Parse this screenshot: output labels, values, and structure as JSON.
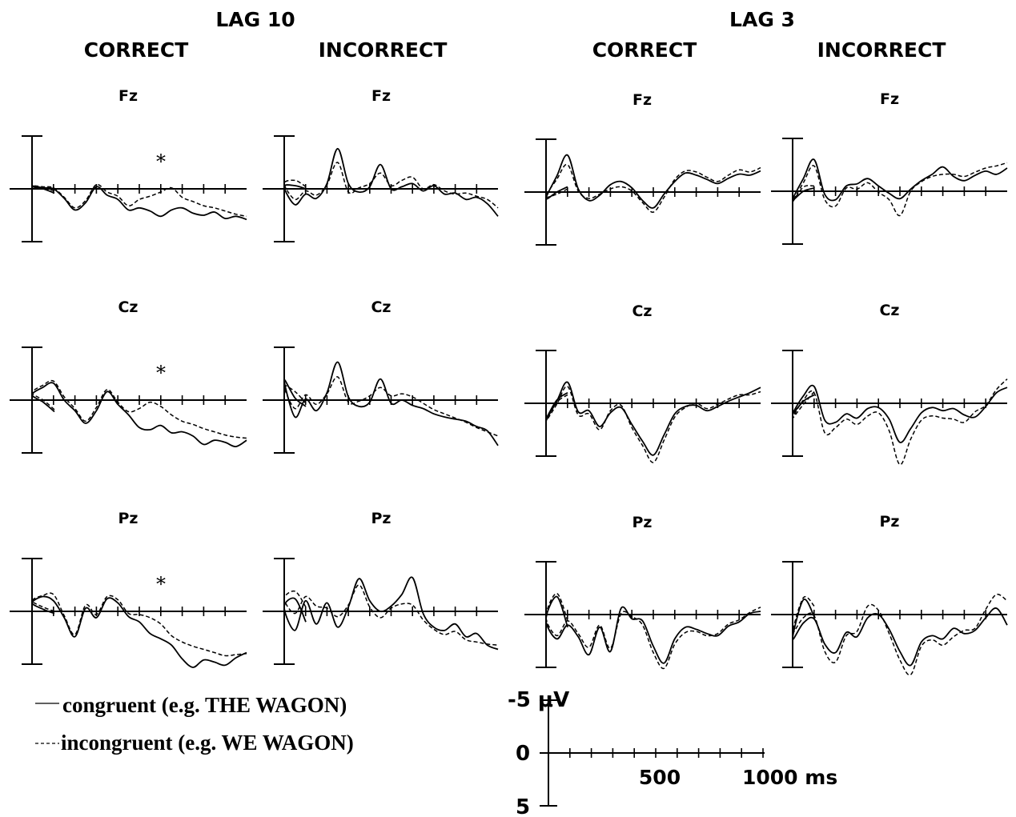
{
  "chart_data": {
    "type": "line",
    "figure_kind": "ERP waveforms",
    "groups": [
      {
        "key": "lag10",
        "label": "LAG 10"
      },
      {
        "key": "lag3",
        "label": "LAG 3"
      }
    ],
    "conditions": [
      "CORRECT",
      "INCORRECT",
      "CORRECT",
      "INCORRECT"
    ],
    "electrodes": [
      "Fz",
      "Cz",
      "Pz"
    ],
    "significance_marker": "*",
    "series_legend": [
      {
        "key": "congruent",
        "label": "congruent (e.g. THE WAGON)",
        "line_style": "solid"
      },
      {
        "key": "incongruent",
        "label": "incongruent (e.g. WE WAGON)",
        "line_style": "dashed"
      }
    ],
    "axis": {
      "x_unit": "ms",
      "x_range": [
        -100,
        1000
      ],
      "x_tick_interval": 100,
      "x_tick_labels": [
        "500",
        "1000 ms"
      ],
      "y_unit": "μV",
      "y_range": [
        -5,
        5
      ],
      "y_inverted": true,
      "y_tick_labels": [
        "-5 μV",
        "0",
        "5"
      ]
    },
    "panels": [
      {
        "group": "lag10",
        "condition": "CORRECT",
        "electrode": "Fz",
        "marker": "*",
        "x": [
          -100,
          -50,
          0,
          50,
          100,
          150,
          200,
          250,
          300,
          350,
          400,
          450,
          500,
          550,
          600,
          650,
          700,
          750,
          800,
          850,
          900,
          950,
          1000
        ],
        "congruent": [
          -0.4,
          0.0,
          0.2,
          0.1,
          0.0,
          -0.9,
          -2.0,
          -1.3,
          0.2,
          -0.6,
          -1.0,
          -2.0,
          -1.8,
          -2.1,
          -2.6,
          -2.0,
          -1.8,
          -2.3,
          -2.5,
          -2.2,
          -2.8,
          -2.6,
          -2.9
        ],
        "incongruent": [
          -0.2,
          0.1,
          0.3,
          0.2,
          0.1,
          -0.8,
          -1.8,
          -1.1,
          0.4,
          -0.3,
          -0.7,
          -1.6,
          -1.0,
          -0.7,
          -0.3,
          0.1,
          -0.8,
          -1.2,
          -1.6,
          -1.8,
          -2.1,
          -2.4,
          -2.6
        ]
      },
      {
        "group": "lag10",
        "condition": "INCORRECT",
        "electrode": "Fz",
        "x": [
          -100,
          -50,
          0,
          50,
          100,
          150,
          200,
          250,
          300,
          350,
          400,
          450,
          500,
          550,
          600,
          650,
          700,
          750,
          800,
          850,
          900,
          950,
          1000
        ],
        "congruent": [
          0.0,
          0.3,
          0.2,
          -1.5,
          -0.5,
          -0.9,
          0.5,
          3.8,
          0.5,
          -0.3,
          0.2,
          2.3,
          0.0,
          0.2,
          0.5,
          -0.2,
          0.3,
          -0.5,
          -0.4,
          -1.0,
          -0.8,
          -1.4,
          -2.6
        ],
        "incongruent": [
          0.2,
          0.8,
          0.5,
          -1.0,
          -0.2,
          -0.6,
          0.4,
          2.5,
          -0.3,
          0.1,
          0.5,
          1.5,
          0.3,
          0.8,
          1.1,
          0.0,
          0.4,
          -0.2,
          -0.5,
          -0.4,
          -0.7,
          -1.0,
          -1.8
        ]
      },
      {
        "group": "lag3",
        "condition": "CORRECT",
        "electrode": "Fz",
        "x": [
          -100,
          -50,
          0,
          50,
          100,
          150,
          200,
          250,
          300,
          350,
          400,
          450,
          500,
          550,
          600,
          650,
          700,
          750,
          800,
          850,
          900,
          950,
          1000
        ],
        "congruent": [
          0.5,
          0.0,
          -0.6,
          1.5,
          3.5,
          0.3,
          -0.8,
          -0.3,
          0.7,
          1.0,
          0.4,
          -0.8,
          -1.5,
          -0.2,
          1.0,
          1.8,
          1.6,
          1.2,
          0.8,
          1.3,
          1.7,
          1.6,
          2.0
        ],
        "incongruent": [
          0.3,
          -0.2,
          -0.4,
          1.2,
          2.6,
          0.1,
          -0.6,
          -0.2,
          0.3,
          0.5,
          0.1,
          -1.0,
          -1.9,
          -0.5,
          1.2,
          2.0,
          1.9,
          1.4,
          1.0,
          1.6,
          2.1,
          1.9,
          2.3
        ]
      },
      {
        "group": "lag3",
        "condition": "INCORRECT",
        "electrode": "Fz",
        "x": [
          -100,
          -50,
          0,
          50,
          100,
          150,
          200,
          250,
          300,
          350,
          400,
          450,
          500,
          550,
          600,
          650,
          700,
          750,
          800,
          850,
          900,
          950,
          1000
        ],
        "congruent": [
          0.3,
          0.0,
          -0.8,
          1.2,
          3.0,
          -0.3,
          -0.8,
          0.5,
          0.7,
          1.2,
          0.5,
          -0.2,
          -0.7,
          0.2,
          1.0,
          1.6,
          2.3,
          1.4,
          1.0,
          1.5,
          1.9,
          1.6,
          2.2
        ],
        "incongruent": [
          0.5,
          0.4,
          -1.0,
          0.8,
          2.4,
          -0.8,
          -1.4,
          0.3,
          0.2,
          0.8,
          -0.1,
          -0.8,
          -2.3,
          0.0,
          0.9,
          1.4,
          1.6,
          1.6,
          1.4,
          1.8,
          2.2,
          2.4,
          2.7
        ]
      },
      {
        "group": "lag10",
        "condition": "CORRECT",
        "electrode": "Cz",
        "marker": "*",
        "x": [
          -100,
          -50,
          0,
          50,
          100,
          150,
          200,
          250,
          300,
          350,
          400,
          450,
          500,
          550,
          600,
          650,
          700,
          750,
          800,
          850,
          900,
          950,
          1000
        ],
        "congruent": [
          -1.1,
          -0.2,
          0.5,
          1.2,
          1.6,
          0.0,
          -1.0,
          -2.2,
          -1.0,
          0.8,
          -0.4,
          -1.4,
          -2.6,
          -2.8,
          -2.4,
          -3.1,
          -3.0,
          -3.4,
          -4.2,
          -3.8,
          -4.0,
          -4.4,
          -3.8
        ],
        "incongruent": [
          -0.9,
          0.0,
          0.7,
          1.4,
          1.8,
          0.3,
          -0.8,
          -2.0,
          -0.7,
          1.0,
          -0.2,
          -1.1,
          -0.8,
          -0.2,
          -0.6,
          -1.4,
          -2.0,
          -2.3,
          -2.7,
          -3.0,
          -3.3,
          -3.5,
          -3.6
        ]
      },
      {
        "group": "lag10",
        "condition": "INCORRECT",
        "electrode": "Cz",
        "x": [
          -100,
          -50,
          0,
          50,
          100,
          150,
          200,
          250,
          300,
          350,
          400,
          450,
          500,
          550,
          600,
          650,
          700,
          750,
          800,
          850,
          900,
          950,
          1000
        ],
        "congruent": [
          -0.6,
          0.2,
          1.9,
          -1.6,
          0.1,
          -1.0,
          0.7,
          3.6,
          0.3,
          -0.6,
          -0.2,
          2.0,
          -0.3,
          0.0,
          -0.5,
          -0.8,
          -1.3,
          -1.6,
          -1.8,
          -2.0,
          -2.5,
          -2.9,
          -4.3
        ],
        "incongruent": [
          -0.3,
          0.8,
          1.3,
          -0.8,
          0.5,
          -0.4,
          0.6,
          2.2,
          -0.2,
          -0.1,
          0.4,
          1.2,
          0.4,
          0.6,
          0.3,
          -0.3,
          -0.9,
          -1.3,
          -1.7,
          -2.1,
          -2.6,
          -3.0,
          -3.4
        ]
      },
      {
        "group": "lag3",
        "condition": "CORRECT",
        "electrode": "Cz",
        "x": [
          -100,
          -50,
          0,
          50,
          100,
          150,
          200,
          250,
          300,
          350,
          400,
          450,
          500,
          550,
          600,
          650,
          700,
          750,
          800,
          850,
          900,
          950,
          1000
        ],
        "congruent": [
          1.0,
          0.3,
          -1.5,
          0.2,
          2.0,
          -0.8,
          -0.7,
          -2.2,
          -0.9,
          -0.4,
          -2.0,
          -3.6,
          -4.9,
          -3.0,
          -1.0,
          -0.3,
          -0.2,
          -0.7,
          -0.3,
          0.2,
          0.6,
          1.0,
          1.5
        ],
        "incongruent": [
          0.8,
          0.1,
          -1.7,
          -0.1,
          1.6,
          -1.1,
          -1.0,
          -2.5,
          -0.7,
          -0.2,
          -2.3,
          -4.0,
          -5.6,
          -3.5,
          -1.3,
          -0.4,
          0.0,
          -0.5,
          -0.1,
          0.4,
          0.8,
          0.8,
          1.1
        ]
      },
      {
        "group": "lag3",
        "condition": "INCORRECT",
        "electrode": "Cz",
        "x": [
          -100,
          -50,
          0,
          50,
          100,
          150,
          200,
          250,
          300,
          350,
          400,
          450,
          500,
          550,
          600,
          650,
          700,
          750,
          800,
          850,
          900,
          950,
          1000
        ],
        "congruent": [
          0.8,
          0.2,
          -1.0,
          0.7,
          1.6,
          -1.6,
          -1.8,
          -1.0,
          -1.4,
          -0.5,
          -0.4,
          -1.5,
          -3.7,
          -2.4,
          -0.9,
          -0.4,
          -0.7,
          -0.5,
          -1.1,
          -1.3,
          -0.3,
          1.0,
          1.5
        ],
        "incongruent": [
          1.1,
          -0.1,
          -1.4,
          0.3,
          1.0,
          -2.8,
          -2.3,
          -1.5,
          -2.0,
          -1.2,
          -0.9,
          -2.6,
          -5.8,
          -3.4,
          -1.6,
          -1.2,
          -1.4,
          -1.5,
          -1.8,
          -0.8,
          -0.2,
          1.3,
          2.3
        ]
      },
      {
        "group": "lag10",
        "condition": "CORRECT",
        "electrode": "Pz",
        "marker": "*",
        "x": [
          -100,
          -50,
          0,
          50,
          100,
          150,
          200,
          250,
          300,
          350,
          400,
          450,
          500,
          550,
          600,
          650,
          700,
          750,
          800,
          850,
          900,
          950,
          1000
        ],
        "congruent": [
          -0.2,
          0.2,
          0.8,
          1.4,
          1.0,
          -0.6,
          -2.4,
          0.3,
          -0.6,
          1.2,
          0.8,
          -0.5,
          -1.0,
          -2.1,
          -2.6,
          -3.2,
          -4.5,
          -5.3,
          -4.6,
          -4.8,
          -5.1,
          -4.4,
          -3.9
        ],
        "incongruent": [
          0.0,
          0.4,
          1.0,
          1.5,
          1.6,
          -0.4,
          -2.2,
          0.6,
          -0.3,
          1.4,
          1.1,
          -0.2,
          -0.3,
          -0.6,
          -1.2,
          -2.3,
          -2.9,
          -3.3,
          -3.6,
          -3.9,
          -4.2,
          -4.1,
          -4.0
        ]
      },
      {
        "group": "lag10",
        "condition": "INCORRECT",
        "electrode": "Pz",
        "x": [
          -100,
          -50,
          0,
          50,
          100,
          150,
          200,
          250,
          300,
          350,
          400,
          450,
          500,
          550,
          600,
          650,
          700,
          750,
          800,
          850,
          900,
          950,
          1000
        ],
        "congruent": [
          -1.0,
          1.2,
          0.4,
          -1.8,
          1.0,
          -1.2,
          0.8,
          -1.5,
          0.4,
          3.1,
          1.0,
          0.0,
          0.5,
          1.6,
          3.2,
          -0.2,
          -1.5,
          -1.8,
          -1.2,
          -2.4,
          -2.1,
          -3.2,
          -3.6
        ],
        "incongruent": [
          0.4,
          1.9,
          1.2,
          -0.2,
          1.4,
          0.5,
          0.3,
          -0.5,
          0.6,
          2.5,
          0.4,
          -0.6,
          0.3,
          0.7,
          0.6,
          -0.8,
          -1.7,
          -2.2,
          -1.9,
          -2.7,
          -2.9,
          -3.1,
          -3.2
        ]
      },
      {
        "group": "lag3",
        "condition": "CORRECT",
        "electrode": "Pz",
        "x": [
          -100,
          -50,
          0,
          50,
          100,
          150,
          200,
          250,
          300,
          350,
          400,
          450,
          500,
          550,
          600,
          650,
          700,
          750,
          800,
          850,
          900,
          950,
          1000
        ],
        "congruent": [
          -1.2,
          1.7,
          -0.5,
          -2.3,
          -1.0,
          -2.1,
          -3.8,
          -1.2,
          -3.5,
          0.6,
          -0.4,
          -0.6,
          -3.0,
          -4.6,
          -2.3,
          -1.2,
          -1.4,
          -1.8,
          -2.0,
          -1.1,
          -0.7,
          0.1,
          0.3
        ],
        "incongruent": [
          -0.6,
          2.0,
          -0.2,
          -2.0,
          -0.6,
          -1.8,
          -3.1,
          -1.0,
          -3.2,
          0.1,
          -0.2,
          -1.0,
          -3.6,
          -5.1,
          -2.8,
          -1.7,
          -1.6,
          -2.0,
          -1.8,
          -0.9,
          -0.5,
          0.2,
          0.7
        ]
      },
      {
        "group": "lag3",
        "condition": "INCORRECT",
        "electrode": "Pz",
        "x": [
          -100,
          -50,
          0,
          50,
          100,
          150,
          200,
          250,
          300,
          350,
          400,
          450,
          500,
          550,
          600,
          650,
          700,
          750,
          800,
          850,
          900,
          950,
          1000
        ],
        "congruent": [
          -0.2,
          1.4,
          -2.3,
          -0.8,
          -0.4,
          -2.8,
          -3.6,
          -1.7,
          -2.1,
          -0.3,
          0.0,
          -1.4,
          -3.5,
          -4.8,
          -2.6,
          -2.0,
          -2.3,
          -1.3,
          -1.8,
          -1.5,
          -0.3,
          0.6,
          -1.0
        ],
        "incongruent": [
          0.8,
          1.6,
          -1.7,
          -0.3,
          -0.1,
          -3.5,
          -4.5,
          -2.0,
          -1.6,
          0.8,
          0.4,
          -1.8,
          -4.3,
          -5.7,
          -3.0,
          -2.4,
          -2.9,
          -2.1,
          -1.5,
          -1.3,
          0.5,
          1.9,
          1.3
        ]
      }
    ]
  }
}
